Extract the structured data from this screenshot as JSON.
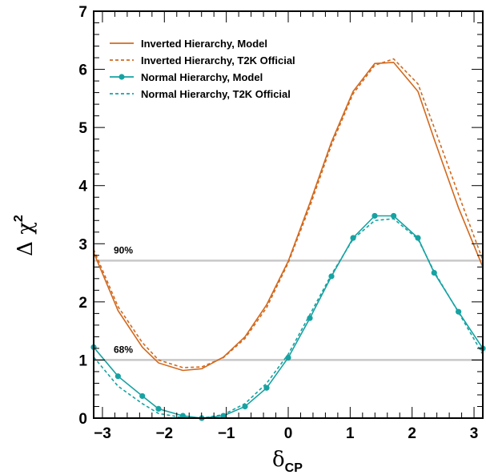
{
  "chart_data": {
    "type": "line",
    "title": "",
    "xlabel": "δ",
    "xlabel_sub": "CP",
    "ylabel": "Δ χ",
    "ylabel_sup": "2",
    "xlim": [
      -3.1416,
      3.1416
    ],
    "ylim": [
      0,
      7
    ],
    "x_ticks": [
      -3,
      -2,
      -1,
      0,
      1,
      2,
      3
    ],
    "y_ticks": [
      0,
      1,
      2,
      3,
      4,
      5,
      6,
      7
    ],
    "grid": false,
    "legend_position": "top-left",
    "reference_lines": [
      {
        "label": "90%",
        "y": 2.71
      },
      {
        "label": "68%",
        "y": 1.0
      }
    ],
    "series": [
      {
        "name": "Inverted Hierarchy, Model",
        "color": "#d2691e",
        "style": "solid",
        "markers": false,
        "x": [
          -3.1416,
          -2.7489,
          -2.3562,
          -2.0944,
          -1.7017,
          -1.3963,
          -1.0472,
          -0.6981,
          -0.3491,
          0.0,
          0.3491,
          0.6981,
          1.0472,
          1.3963,
          1.7017,
          2.0944,
          2.3562,
          2.7489,
          3.1416
        ],
        "y": [
          2.85,
          1.85,
          1.22,
          0.95,
          0.82,
          0.85,
          1.05,
          1.4,
          1.95,
          2.7,
          3.7,
          4.75,
          5.62,
          6.1,
          6.12,
          5.62,
          4.8,
          3.62,
          2.6
        ]
      },
      {
        "name": "Inverted Hierarchy, T2K Official",
        "color": "#d2691e",
        "style": "dashed",
        "markers": false,
        "x": [
          -3.1416,
          -2.7489,
          -2.3562,
          -2.0944,
          -1.7017,
          -1.3963,
          -1.0472,
          -0.6981,
          -0.3491,
          0.0,
          0.3491,
          0.6981,
          1.0472,
          1.3963,
          1.7017,
          2.0944,
          2.3562,
          2.7489,
          3.1416
        ],
        "y": [
          2.9,
          1.92,
          1.3,
          1.0,
          0.87,
          0.88,
          1.04,
          1.37,
          1.9,
          2.67,
          3.64,
          4.7,
          5.58,
          6.07,
          6.18,
          5.75,
          5.0,
          3.85,
          2.72
        ]
      },
      {
        "name": "Normal Hierarchy, Model",
        "color": "#17a2a2",
        "style": "solid",
        "markers": true,
        "x": [
          -3.1416,
          -2.7489,
          -2.3562,
          -2.0944,
          -1.7017,
          -1.3963,
          -1.0472,
          -0.6981,
          -0.3491,
          0.0,
          0.3491,
          0.6981,
          1.0472,
          1.3963,
          1.7017,
          2.0944,
          2.3562,
          2.7489,
          3.1416
        ],
        "y": [
          1.22,
          0.72,
          0.38,
          0.16,
          0.04,
          0.0,
          0.04,
          0.2,
          0.52,
          1.04,
          1.72,
          2.44,
          3.1,
          3.48,
          3.48,
          3.1,
          2.5,
          1.83,
          1.2
        ]
      },
      {
        "name": "Normal Hierarchy, T2K Official",
        "color": "#17a2a2",
        "style": "dashed",
        "markers": false,
        "x": [
          -3.1416,
          -2.7489,
          -2.3562,
          -2.0944,
          -1.7017,
          -1.3963,
          -1.0472,
          -0.6981,
          -0.3491,
          0.0,
          0.3491,
          0.6981,
          1.0472,
          1.3963,
          1.7017,
          2.0944,
          2.3562,
          2.7489,
          3.1416
        ],
        "y": [
          1.05,
          0.55,
          0.25,
          0.08,
          0.01,
          0.0,
          0.06,
          0.25,
          0.6,
          1.1,
          1.78,
          2.47,
          3.08,
          3.4,
          3.43,
          3.08,
          2.52,
          1.82,
          1.1
        ]
      }
    ]
  }
}
